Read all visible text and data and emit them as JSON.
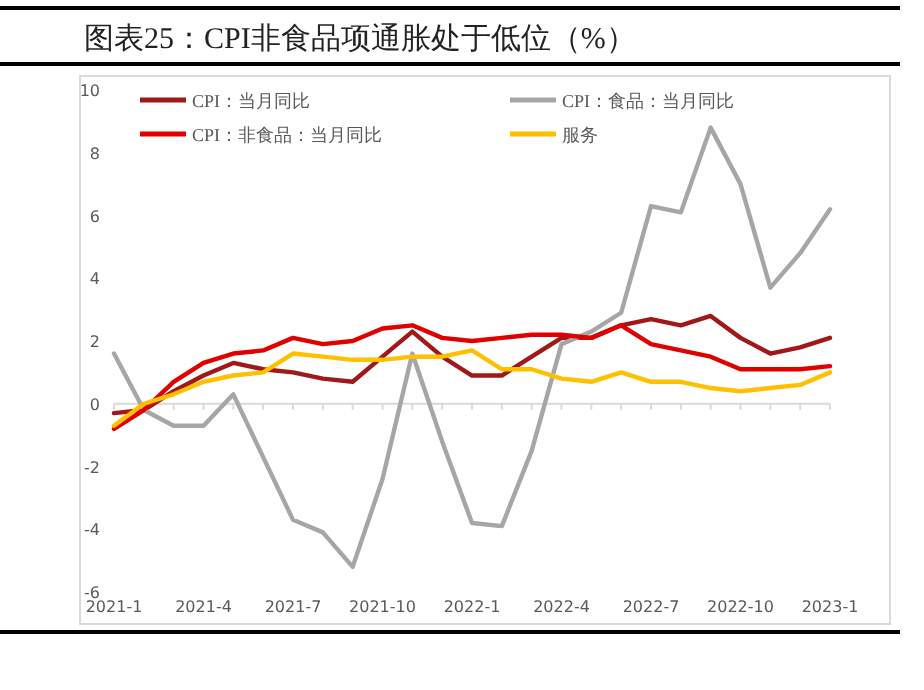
{
  "chart_data": {
    "type": "line",
    "title": "图表25：CPI非食品项通胀处于低位（%）",
    "categories": [
      "2021-1",
      null,
      null,
      "2021-4",
      null,
      null,
      "2021-7",
      null,
      null,
      "2021-10",
      null,
      null,
      "2022-1",
      null,
      null,
      "2022-4",
      null,
      null,
      "2022-7",
      null,
      null,
      "2022-10",
      null,
      null,
      "2023-1"
    ],
    "series": [
      {
        "name": "CPI：当月同比",
        "color": "#a01818",
        "values": [
          -0.3,
          -0.2,
          0.4,
          0.9,
          1.3,
          1.1,
          1.0,
          0.8,
          0.7,
          1.5,
          2.3,
          1.5,
          0.9,
          0.9,
          1.5,
          2.1,
          2.1,
          2.5,
          2.7,
          2.5,
          2.8,
          2.1,
          1.6,
          1.8,
          2.1
        ]
      },
      {
        "name": "CPI：食品：当月同比",
        "color": "#a6a6a6",
        "values": [
          1.6,
          -0.2,
          -0.7,
          -0.7,
          0.3,
          -1.7,
          -3.7,
          -4.1,
          -5.2,
          -2.4,
          1.6,
          -1.2,
          -3.8,
          -3.9,
          -1.5,
          1.9,
          2.3,
          2.9,
          6.3,
          6.1,
          8.8,
          7.0,
          3.7,
          4.8,
          6.2
        ]
      },
      {
        "name": "CPI：非食品：当月同比",
        "color": "#e00000",
        "values": [
          -0.8,
          -0.2,
          0.7,
          1.3,
          1.6,
          1.7,
          2.1,
          1.9,
          2.0,
          2.4,
          2.5,
          2.1,
          2.0,
          2.1,
          2.2,
          2.2,
          2.1,
          2.5,
          1.9,
          1.7,
          1.5,
          1.1,
          1.1,
          1.1,
          1.2
        ]
      },
      {
        "name": "服务",
        "color": "#ffc000",
        "values": [
          -0.7,
          0.0,
          0.3,
          0.7,
          0.9,
          1.0,
          1.6,
          1.5,
          1.4,
          1.4,
          1.5,
          1.5,
          1.7,
          1.1,
          1.1,
          0.8,
          0.7,
          1.0,
          0.7,
          0.7,
          0.5,
          0.4,
          0.5,
          0.6,
          1.0
        ]
      }
    ],
    "ylim": [
      -6,
      10
    ],
    "yticks": [
      -6,
      -4,
      -2,
      0,
      2,
      4,
      6,
      8,
      10
    ],
    "legend": "top"
  }
}
